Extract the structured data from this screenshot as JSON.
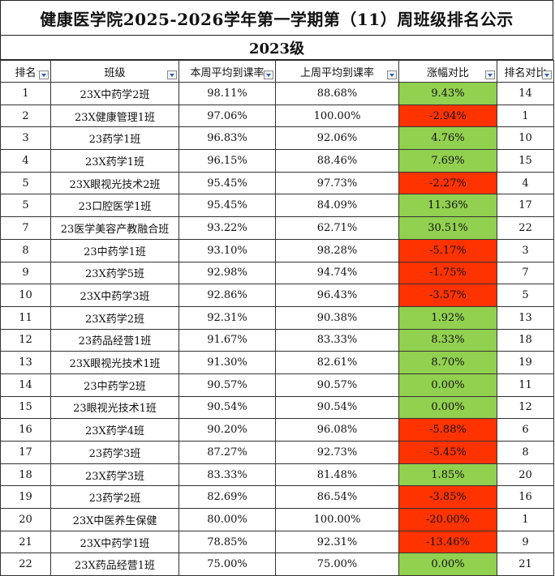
{
  "title": "健康医学院2025-2026学年第一学期第（11）周班级排名公示",
  "subtitle": "2023级",
  "colors": {
    "positive": "#92d050",
    "negative": "#ff3300",
    "filter_arrow": "#2a62b5"
  },
  "headers": [
    "排名",
    "班级",
    "本周平均到课率",
    "上周平均到课率",
    "涨幅对比",
    "排名对比"
  ],
  "rows": [
    [
      "1",
      "23X中药学2班",
      "98.11%",
      "88.68%",
      "9.43%",
      "14",
      "pos"
    ],
    [
      "2",
      "23X健康管理1班",
      "97.06%",
      "100.00%",
      "-2.94%",
      "1",
      "neg"
    ],
    [
      "3",
      "23药学1班",
      "96.83%",
      "92.06%",
      "4.76%",
      "10",
      "pos"
    ],
    [
      "4",
      "23X药学1班",
      "96.15%",
      "88.46%",
      "7.69%",
      "15",
      "pos"
    ],
    [
      "5",
      "23X眼视光技术2班",
      "95.45%",
      "97.73%",
      "-2.27%",
      "4",
      "neg"
    ],
    [
      "5",
      "23口腔医学1班",
      "95.45%",
      "84.09%",
      "11.36%",
      "17",
      "pos"
    ],
    [
      "7",
      "23医学美容产教融合班",
      "93.22%",
      "62.71%",
      "30.51%",
      "22",
      "pos"
    ],
    [
      "8",
      "23中药学1班",
      "93.10%",
      "98.28%",
      "-5.17%",
      "3",
      "neg"
    ],
    [
      "9",
      "23X药学5班",
      "92.98%",
      "94.74%",
      "-1.75%",
      "7",
      "neg"
    ],
    [
      "10",
      "23X中药学3班",
      "92.86%",
      "96.43%",
      "-3.57%",
      "5",
      "neg"
    ],
    [
      "11",
      "23X药学2班",
      "92.31%",
      "90.38%",
      "1.92%",
      "13",
      "pos"
    ],
    [
      "12",
      "23药品经营1班",
      "91.67%",
      "83.33%",
      "8.33%",
      "18",
      "pos"
    ],
    [
      "13",
      "23X眼视光技术1班",
      "91.30%",
      "82.61%",
      "8.70%",
      "19",
      "pos"
    ],
    [
      "14",
      "23中药学2班",
      "90.57%",
      "90.57%",
      "0.00%",
      "11",
      "pos"
    ],
    [
      "15",
      "23眼视光技术1班",
      "90.54%",
      "90.54%",
      "0.00%",
      "12",
      "pos"
    ],
    [
      "16",
      "23X药学4班",
      "90.20%",
      "96.08%",
      "-5.88%",
      "6",
      "neg"
    ],
    [
      "17",
      "23药学3班",
      "87.27%",
      "92.73%",
      "-5.45%",
      "8",
      "neg"
    ],
    [
      "18",
      "23X药学3班",
      "83.33%",
      "81.48%",
      "1.85%",
      "20",
      "pos"
    ],
    [
      "19",
      "23药学2班",
      "82.69%",
      "86.54%",
      "-3.85%",
      "16",
      "neg"
    ],
    [
      "20",
      "23X中医养生保健",
      "80.00%",
      "100.00%",
      "-20.00%",
      "1",
      "neg"
    ],
    [
      "21",
      "23X中药学1班",
      "78.85%",
      "92.31%",
      "-13.46%",
      "9",
      "neg"
    ],
    [
      "22",
      "23X药品经营1班",
      "75.00%",
      "75.00%",
      "0.00%",
      "21",
      "pos"
    ]
  ]
}
